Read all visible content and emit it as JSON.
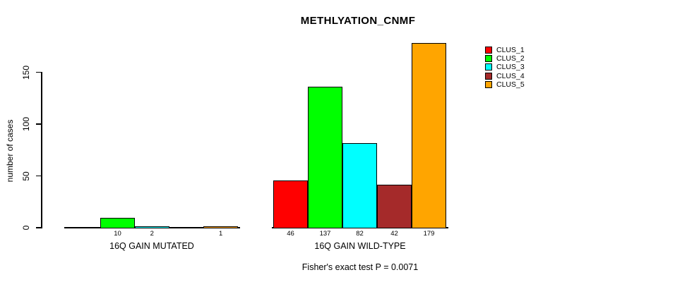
{
  "chart_data": {
    "type": "bar",
    "title": "METHLYATION_CNMF",
    "ylabel": "number of cases",
    "xlabel": "",
    "yticks": [
      0,
      50,
      100,
      150
    ],
    "ylim": [
      0,
      179
    ],
    "grid": false,
    "legend": {
      "position": "right",
      "entries": [
        {
          "label": "CLUS_1",
          "color": "#FF0000"
        },
        {
          "label": "CLUS_2",
          "color": "#00FF00"
        },
        {
          "label": "CLUS_3",
          "color": "#00FFFF"
        },
        {
          "label": "CLUS_4",
          "color": "#A52A2A"
        },
        {
          "label": "CLUS_5",
          "color": "#FFA500"
        }
      ]
    },
    "series_colors": [
      "#FF0000",
      "#00FF00",
      "#00FFFF",
      "#A52A2A",
      "#FFA500"
    ],
    "groups": [
      {
        "label": "16Q GAIN MUTATED",
        "values": [
          0,
          10,
          2,
          0,
          1
        ],
        "value_labels": [
          "",
          "10",
          "2",
          "",
          "1"
        ]
      },
      {
        "label": "16Q GAIN WILD-TYPE",
        "values": [
          46,
          137,
          82,
          42,
          179
        ],
        "value_labels": [
          "46",
          "137",
          "82",
          "42",
          "179"
        ]
      }
    ],
    "annotation": "Fisher's exact test P = 0.0071"
  }
}
